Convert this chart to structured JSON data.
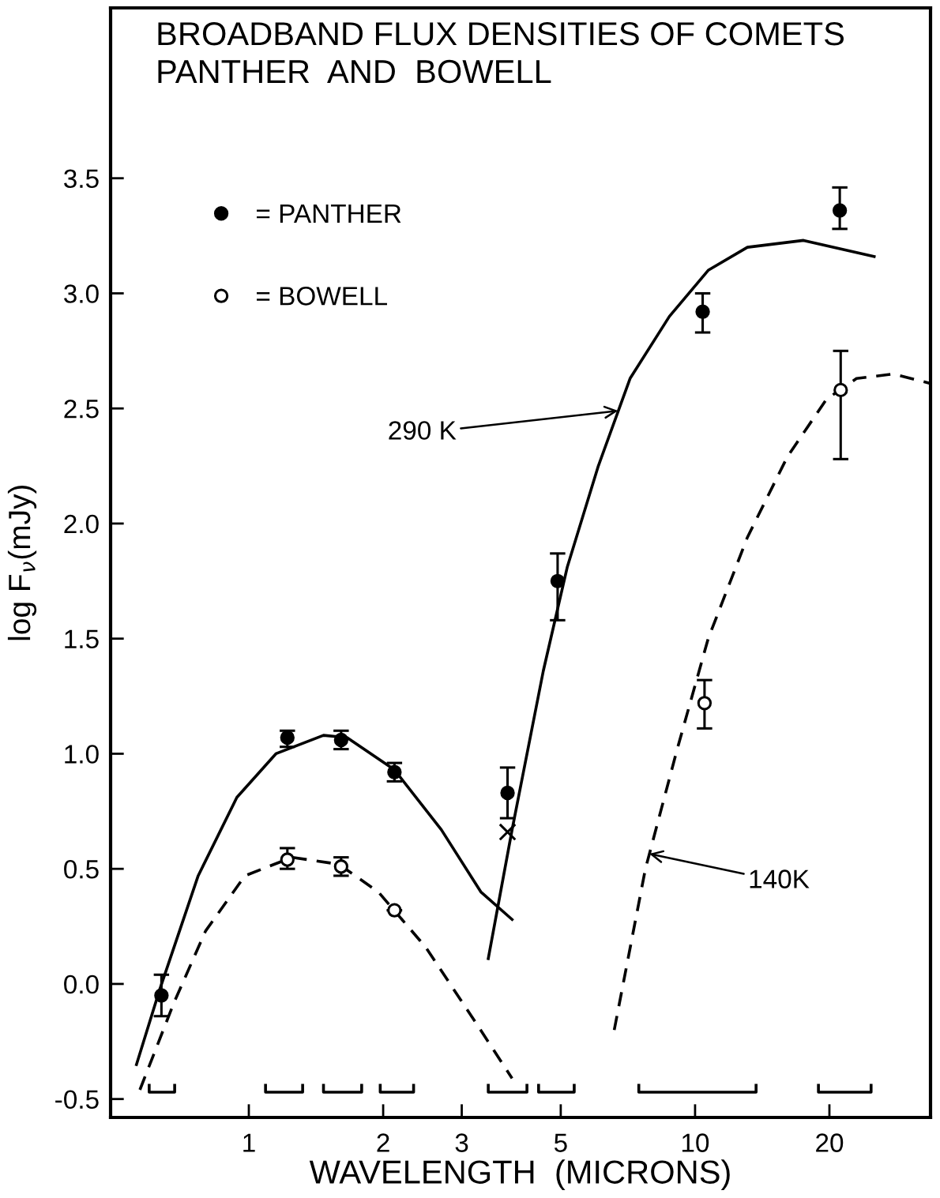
{
  "chart_data": {
    "type": "scatter",
    "title": "BROADBAND FLUX DENSITIES OF COMETS\nPANTHER  AND  BOWELL",
    "xlabel": "WAVELENGTH  (MICRONS)",
    "ylabel": "log F$_{ν}$(mJy)",
    "log": "x",
    "xlim": [
      0.49,
      33.7
    ],
    "ylim": [
      -0.58,
      4.24
    ],
    "xticks": [
      1,
      2,
      3,
      5,
      10,
      20
    ],
    "yticks": [
      -0.5,
      {
        "value": 0,
        "label": "0.0"
      },
      0.5,
      {
        "value": 1,
        "label": "1.0"
      },
      1.5,
      {
        "value": 2,
        "label": "2.0"
      },
      2.5,
      {
        "value": 3,
        "label": "3.0"
      },
      3.5
    ],
    "grid": false,
    "legend": "top left",
    "series": [
      {
        "name": "= PANTHER",
        "marker": "circle",
        "color": "#000000",
        "x": [
          0.637,
          1.22,
          1.61,
          2.12,
          3.8,
          4.92,
          10.4,
          21.1
        ],
        "values": [
          -0.05,
          1.07,
          1.06,
          0.92,
          0.83,
          1.75,
          2.92,
          3.36
        ],
        "errors": [
          [
            -0.14,
            0.04
          ],
          [
            1.03,
            1.1
          ],
          [
            1.02,
            1.1
          ],
          [
            0.88,
            0.96
          ],
          [
            0.72,
            0.94
          ],
          [
            1.58,
            1.87
          ],
          [
            2.83,
            3.0
          ],
          [
            3.28,
            3.46
          ]
        ]
      },
      {
        "name": "= BOWELL",
        "marker": "circle",
        "color": "#ffffff",
        "x": [
          1.22,
          1.61,
          2.12,
          10.5,
          21.2
        ],
        "values": [
          0.54,
          0.51,
          0.32,
          1.22,
          2.58
        ],
        "errors": [
          [
            0.5,
            0.59
          ],
          [
            0.47,
            0.55
          ],
          null,
          [
            1.11,
            1.32
          ],
          [
            2.28,
            2.75
          ]
        ]
      },
      {
        "marker": "cross",
        "color": "#000000",
        "x": [
          3.8
        ],
        "values": [
          0.66
        ]
      },
      {
        "type": "line",
        "line_style": "solid",
        "color": "#000000",
        "x": [
          0.56,
          0.63,
          0.77,
          0.94,
          1.15,
          1.47,
          1.66,
          2.12,
          2.7,
          3.31,
          3.89
        ],
        "values": [
          -0.35,
          -0.03,
          0.47,
          0.81,
          1.0,
          1.08,
          1.07,
          0.93,
          0.67,
          0.4,
          0.28
        ]
      },
      {
        "type": "line",
        "line_style": "dashed",
        "color": "#000000",
        "x": [
          0.57,
          0.68,
          0.8,
          0.98,
          1.25,
          1.59,
          1.95,
          2.49,
          3.18,
          3.89
        ],
        "values": [
          -0.46,
          -0.08,
          0.23,
          0.47,
          0.55,
          0.52,
          0.4,
          0.16,
          -0.15,
          -0.41
        ]
      },
      {
        "type": "line",
        "line_style": "solid",
        "color": "#000000",
        "x": [
          3.44,
          3.89,
          4.57,
          5.17,
          6.07,
          7.15,
          8.76,
          10.7,
          13.1,
          17.5,
          25.2
        ],
        "values": [
          0.11,
          0.67,
          1.36,
          1.81,
          2.25,
          2.63,
          2.9,
          3.1,
          3.2,
          3.23,
          3.16
        ]
      },
      {
        "type": "line",
        "line_style": "dashed",
        "color": "#000000",
        "x": [
          6.59,
          7.74,
          9.12,
          10.7,
          13.1,
          16.1,
          19.7,
          23.0,
          27.8,
          33.5
        ],
        "values": [
          -0.2,
          0.5,
          1.02,
          1.5,
          1.94,
          2.29,
          2.54,
          2.63,
          2.65,
          2.61
        ]
      },
      {
        "type": "line",
        "line_style": "solid",
        "color": "#000000",
        "x": [
          0.598,
          0.598,
          0.682,
          0.682
        ],
        "values": [
          -0.44,
          -0.47,
          -0.47,
          -0.44
        ]
      },
      {
        "type": "line",
        "line_style": "solid",
        "color": "#000000",
        "x": [
          1.09,
          1.09,
          1.32,
          1.32
        ],
        "values": [
          -0.44,
          -0.47,
          -0.47,
          -0.44
        ]
      },
      {
        "type": "line",
        "line_style": "solid",
        "color": "#000000",
        "x": [
          1.47,
          1.47,
          1.79,
          1.79
        ],
        "values": [
          -0.44,
          -0.47,
          -0.47,
          -0.44
        ]
      },
      {
        "type": "line",
        "line_style": "solid",
        "color": "#000000",
        "x": [
          1.97,
          1.97,
          2.34,
          2.34
        ],
        "values": [
          -0.44,
          -0.47,
          -0.47,
          -0.44
        ]
      },
      {
        "type": "line",
        "line_style": "solid",
        "color": "#000000",
        "x": [
          3.44,
          3.44,
          4.2,
          4.2
        ],
        "values": [
          -0.44,
          -0.47,
          -0.47,
          -0.44
        ]
      },
      {
        "type": "line",
        "line_style": "solid",
        "color": "#000000",
        "x": [
          4.46,
          4.46,
          5.36,
          5.36
        ],
        "values": [
          -0.44,
          -0.47,
          -0.47,
          -0.44
        ]
      },
      {
        "type": "line",
        "line_style": "solid",
        "color": "#000000",
        "x": [
          7.48,
          7.48,
          13.7,
          13.7
        ],
        "values": [
          -0.44,
          -0.47,
          -0.47,
          -0.44
        ]
      },
      {
        "type": "line",
        "line_style": "solid",
        "color": "#000000",
        "x": [
          18.9,
          18.9,
          24.8,
          24.8
        ],
        "values": [
          -0.44,
          -0.47,
          -0.47,
          -0.44
        ]
      }
    ],
    "annotations": [
      {
        "text": "290 K",
        "x": 6.72,
        "y": 2.49
      },
      {
        "text": "140K",
        "x": 7.9,
        "y": 0.565
      }
    ]
  }
}
